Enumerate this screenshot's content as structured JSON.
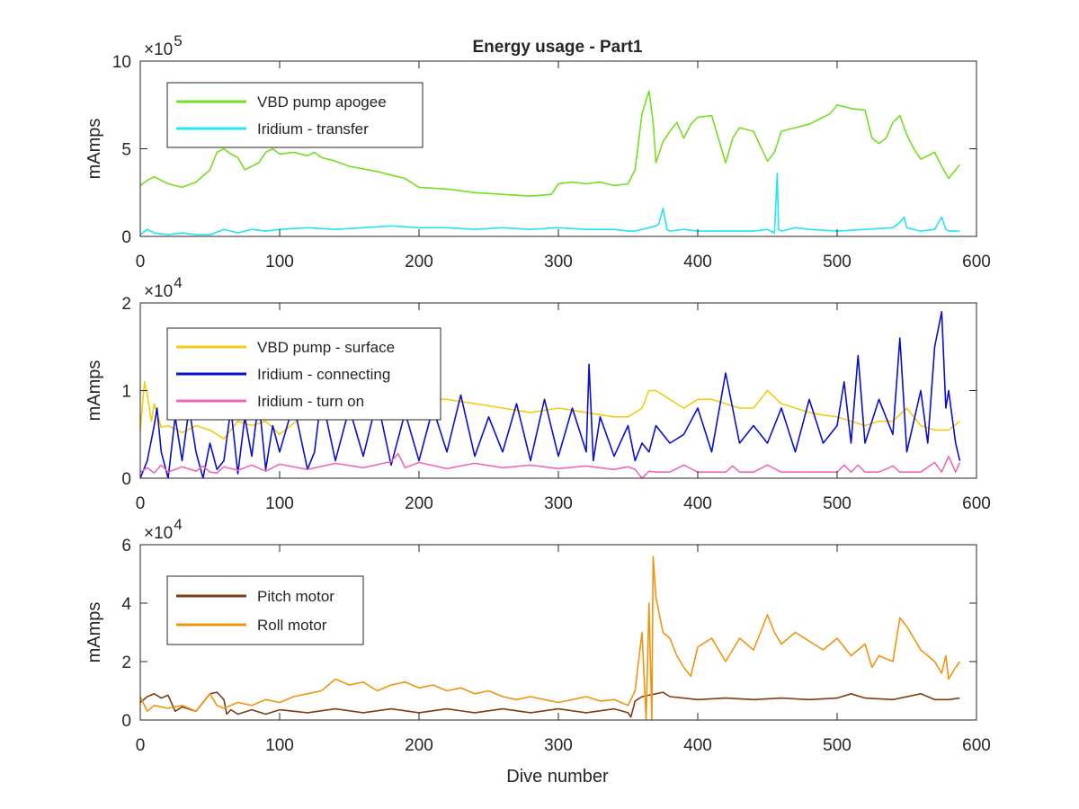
{
  "figure_title": "Energy usage - Part1",
  "xlabel": "Dive number",
  "colors": {
    "vbd_apogee": "#77dd22",
    "iridium_transfer": "#22e5ee",
    "vbd_surface": "#f2cc10",
    "iridium_connecting": "#0a10c8",
    "iridium_turn_on": "#ee6ab4",
    "pitch_motor": "#7a3e12",
    "roll_motor": "#f09410",
    "axis": "#262626"
  },
  "chart_data": [
    {
      "type": "line",
      "title": "Energy usage - Part1",
      "xlabel": "",
      "ylabel": "mAmps",
      "xlim": [
        0,
        600
      ],
      "ylim": [
        0,
        1000000
      ],
      "xticks": [
        "0",
        "100",
        "200",
        "300",
        "400",
        "500",
        "600"
      ],
      "yticks": [
        "0",
        "5",
        "10"
      ],
      "multiplier_base": "×10",
      "multiplier_exp": "5",
      "grid": false,
      "legend_position": "top-left",
      "series": [
        {
          "name": "VBD pump apogee",
          "color_key": "vbd_apogee",
          "x": [
            0,
            5,
            10,
            20,
            30,
            40,
            50,
            55,
            60,
            65,
            70,
            75,
            80,
            85,
            90,
            95,
            100,
            110,
            120,
            125,
            130,
            140,
            150,
            170,
            180,
            190,
            200,
            220,
            240,
            260,
            280,
            295,
            300,
            310,
            320,
            330,
            340,
            350,
            355,
            360,
            365,
            368,
            370,
            375,
            380,
            385,
            390,
            395,
            400,
            410,
            420,
            425,
            430,
            440,
            450,
            455,
            460,
            470,
            480,
            490,
            495,
            500,
            505,
            510,
            520,
            525,
            530,
            535,
            540,
            545,
            550,
            555,
            560,
            570,
            575,
            580,
            585,
            588
          ],
          "values": [
            290000,
            320000,
            340000,
            300000,
            280000,
            310000,
            380000,
            480000,
            500000,
            470000,
            450000,
            380000,
            400000,
            420000,
            480000,
            500000,
            470000,
            480000,
            460000,
            480000,
            450000,
            430000,
            400000,
            370000,
            350000,
            330000,
            280000,
            270000,
            250000,
            240000,
            230000,
            240000,
            300000,
            310000,
            300000,
            310000,
            290000,
            300000,
            380000,
            700000,
            830000,
            650000,
            420000,
            540000,
            600000,
            650000,
            560000,
            640000,
            680000,
            690000,
            420000,
            560000,
            620000,
            600000,
            430000,
            480000,
            600000,
            620000,
            640000,
            680000,
            700000,
            750000,
            740000,
            730000,
            720000,
            560000,
            530000,
            560000,
            650000,
            690000,
            580000,
            500000,
            440000,
            480000,
            400000,
            330000,
            380000,
            410000
          ]
        },
        {
          "name": "Iridium - transfer",
          "color_key": "iridium_transfer",
          "x": [
            0,
            5,
            10,
            20,
            30,
            40,
            50,
            60,
            70,
            80,
            90,
            100,
            120,
            140,
            160,
            180,
            200,
            220,
            240,
            260,
            280,
            300,
            320,
            340,
            350,
            355,
            360,
            365,
            370,
            372,
            375,
            378,
            380,
            390,
            400,
            420,
            440,
            450,
            455,
            457,
            458,
            460,
            470,
            480,
            500,
            520,
            540,
            545,
            548,
            550,
            560,
            570,
            575,
            578,
            580,
            588
          ],
          "values": [
            10000,
            40000,
            20000,
            10000,
            20000,
            10000,
            10000,
            40000,
            20000,
            40000,
            30000,
            40000,
            50000,
            40000,
            50000,
            60000,
            50000,
            50000,
            40000,
            50000,
            40000,
            50000,
            40000,
            40000,
            30000,
            30000,
            40000,
            50000,
            60000,
            70000,
            160000,
            40000,
            30000,
            40000,
            30000,
            30000,
            30000,
            40000,
            20000,
            360000,
            40000,
            30000,
            50000,
            40000,
            30000,
            40000,
            50000,
            80000,
            110000,
            50000,
            30000,
            40000,
            110000,
            40000,
            30000,
            30000
          ]
        }
      ]
    },
    {
      "type": "line",
      "title": "",
      "xlabel": "",
      "ylabel": "mAmps",
      "xlim": [
        0,
        600
      ],
      "ylim": [
        0,
        20000
      ],
      "xticks": [
        "0",
        "100",
        "200",
        "300",
        "400",
        "500",
        "600"
      ],
      "yticks": [
        "0",
        "1",
        "2"
      ],
      "multiplier_base": "×10",
      "multiplier_exp": "4",
      "grid": false,
      "legend_position": "top-left",
      "series": [
        {
          "name": "VBD pump - surface",
          "color_key": "vbd_surface",
          "x": [
            0,
            3,
            5,
            8,
            10,
            15,
            20,
            30,
            40,
            50,
            60,
            70,
            80,
            90,
            100,
            120,
            140,
            160,
            180,
            200,
            220,
            240,
            260,
            280,
            300,
            320,
            340,
            350,
            355,
            360,
            365,
            370,
            380,
            390,
            400,
            410,
            420,
            430,
            440,
            450,
            460,
            470,
            480,
            490,
            500,
            510,
            520,
            530,
            540,
            550,
            560,
            570,
            580,
            588
          ],
          "values": [
            5500,
            11000,
            9500,
            6500,
            8500,
            5800,
            6000,
            5200,
            6000,
            5500,
            4500,
            6500,
            6000,
            6500,
            5000,
            7500,
            8500,
            9000,
            8000,
            9000,
            9000,
            8500,
            8000,
            7500,
            8000,
            7500,
            7000,
            7000,
            7500,
            8000,
            10000,
            10000,
            9000,
            8000,
            9000,
            9000,
            8500,
            8000,
            8000,
            10000,
            8500,
            8000,
            7500,
            7200,
            7000,
            6500,
            6000,
            6500,
            6500,
            8000,
            6000,
            5500,
            5500,
            6500
          ]
        },
        {
          "name": "Iridium - connecting",
          "color_key": "iridium_connecting",
          "x": [
            0,
            5,
            10,
            12,
            15,
            20,
            25,
            30,
            35,
            40,
            45,
            50,
            55,
            60,
            65,
            70,
            75,
            80,
            85,
            90,
            95,
            100,
            110,
            120,
            125,
            130,
            140,
            150,
            160,
            170,
            180,
            190,
            200,
            210,
            220,
            230,
            240,
            250,
            260,
            270,
            280,
            290,
            300,
            310,
            320,
            322,
            325,
            330,
            340,
            350,
            355,
            360,
            365,
            370,
            380,
            390,
            400,
            410,
            420,
            430,
            440,
            450,
            460,
            470,
            480,
            490,
            500,
            505,
            510,
            515,
            520,
            530,
            540,
            545,
            550,
            560,
            565,
            570,
            575,
            578,
            580,
            585,
            588
          ],
          "values": [
            0,
            2000,
            6000,
            8000,
            3000,
            0,
            7000,
            2000,
            8000,
            3000,
            0,
            4000,
            1000,
            2000,
            8000,
            500,
            7000,
            2500,
            9000,
            1000,
            6000,
            3000,
            8500,
            1000,
            3000,
            9500,
            2000,
            8000,
            2500,
            9000,
            1500,
            7500,
            2000,
            8000,
            3000,
            9500,
            2500,
            7000,
            3000,
            8500,
            2000,
            9000,
            2500,
            8000,
            3000,
            13000,
            2000,
            7000,
            2500,
            6000,
            2000,
            4000,
            3000,
            6000,
            4000,
            5000,
            8000,
            3000,
            12000,
            4000,
            6000,
            4000,
            8000,
            3000,
            9000,
            4000,
            6000,
            11000,
            4000,
            14000,
            4000,
            9000,
            5000,
            16000,
            3000,
            10000,
            4000,
            15000,
            19000,
            8000,
            10000,
            4000,
            2000
          ]
        },
        {
          "name": "Iridium - turn on",
          "color_key": "iridium_turn_on",
          "x": [
            0,
            5,
            10,
            15,
            20,
            30,
            40,
            45,
            50,
            55,
            60,
            70,
            80,
            90,
            100,
            120,
            140,
            160,
            180,
            185,
            190,
            200,
            220,
            240,
            260,
            280,
            300,
            320,
            340,
            350,
            355,
            360,
            365,
            370,
            380,
            390,
            400,
            410,
            420,
            425,
            430,
            440,
            450,
            460,
            470,
            480,
            490,
            500,
            505,
            510,
            515,
            520,
            530,
            540,
            545,
            550,
            560,
            570,
            575,
            580,
            585,
            588
          ],
          "values": [
            700,
            1200,
            600,
            1500,
            700,
            1300,
            800,
            1400,
            700,
            600,
            1300,
            900,
            1500,
            800,
            1600,
            1000,
            1700,
            1200,
            1900,
            2800,
            1200,
            1800,
            1100,
            1700,
            1200,
            1500,
            1100,
            1400,
            1000,
            1300,
            1000,
            0,
            800,
            700,
            700,
            1500,
            700,
            700,
            700,
            1400,
            700,
            700,
            1500,
            700,
            700,
            700,
            700,
            700,
            1500,
            700,
            1500,
            700,
            700,
            1400,
            700,
            700,
            700,
            1800,
            700,
            2500,
            700,
            1800
          ]
        }
      ]
    },
    {
      "type": "line",
      "title": "",
      "xlabel": "Dive number",
      "ylabel": "mAmps",
      "xlim": [
        0,
        600
      ],
      "ylim": [
        0,
        60000
      ],
      "xticks": [
        "0",
        "100",
        "200",
        "300",
        "400",
        "500",
        "600"
      ],
      "yticks": [
        "0",
        "2",
        "4",
        "6"
      ],
      "multiplier_base": "×10",
      "multiplier_exp": "4",
      "grid": false,
      "legend_position": "top-left",
      "series": [
        {
          "name": "Pitch motor",
          "color_key": "pitch_motor",
          "x": [
            0,
            5,
            10,
            15,
            20,
            25,
            30,
            40,
            50,
            55,
            60,
            62,
            65,
            70,
            80,
            90,
            100,
            120,
            140,
            160,
            180,
            200,
            220,
            240,
            260,
            280,
            300,
            320,
            340,
            350,
            352,
            355,
            360,
            370,
            375,
            380,
            390,
            400,
            420,
            440,
            460,
            480,
            500,
            510,
            520,
            540,
            560,
            570,
            580,
            588
          ],
          "values": [
            6000,
            8000,
            9000,
            7500,
            8500,
            3000,
            4500,
            3000,
            9000,
            9500,
            7000,
            2000,
            3500,
            2000,
            3500,
            2000,
            3500,
            2500,
            3800,
            2500,
            3800,
            2500,
            3800,
            2500,
            3800,
            2500,
            3800,
            2500,
            3800,
            2500,
            1000,
            6500,
            8000,
            9000,
            9500,
            8000,
            7500,
            7000,
            7500,
            7000,
            7500,
            7000,
            7500,
            9000,
            7500,
            7000,
            9000,
            7000,
            7000,
            7500
          ]
        },
        {
          "name": "Roll motor",
          "color_key": "roll_motor",
          "x": [
            0,
            5,
            10,
            20,
            30,
            40,
            50,
            55,
            60,
            70,
            80,
            90,
            100,
            110,
            120,
            130,
            140,
            150,
            160,
            170,
            180,
            190,
            200,
            210,
            220,
            230,
            240,
            250,
            260,
            270,
            280,
            290,
            300,
            310,
            320,
            330,
            340,
            350,
            355,
            360,
            363,
            365,
            367,
            368,
            370,
            375,
            380,
            385,
            390,
            395,
            400,
            410,
            420,
            430,
            440,
            450,
            455,
            460,
            470,
            480,
            490,
            500,
            510,
            520,
            525,
            530,
            540,
            545,
            550,
            555,
            560,
            570,
            575,
            578,
            580,
            585,
            588
          ],
          "values": [
            8000,
            3000,
            5000,
            4000,
            5000,
            3000,
            9000,
            5000,
            4000,
            6000,
            5000,
            7000,
            6000,
            8000,
            9000,
            10000,
            14000,
            12000,
            13000,
            10000,
            12000,
            13000,
            11000,
            12000,
            10000,
            11000,
            9000,
            10000,
            8000,
            7000,
            8000,
            7000,
            6000,
            7000,
            8000,
            6500,
            7000,
            5000,
            10000,
            30000,
            0,
            40000,
            0,
            56000,
            42000,
            30000,
            28000,
            22000,
            18000,
            15000,
            25000,
            28000,
            20000,
            28000,
            24000,
            36000,
            30000,
            26000,
            30000,
            27000,
            24000,
            28000,
            22000,
            26000,
            18000,
            22000,
            20000,
            35000,
            32000,
            28000,
            24000,
            20000,
            16000,
            22000,
            14000,
            18000,
            20000
          ]
        }
      ]
    }
  ]
}
